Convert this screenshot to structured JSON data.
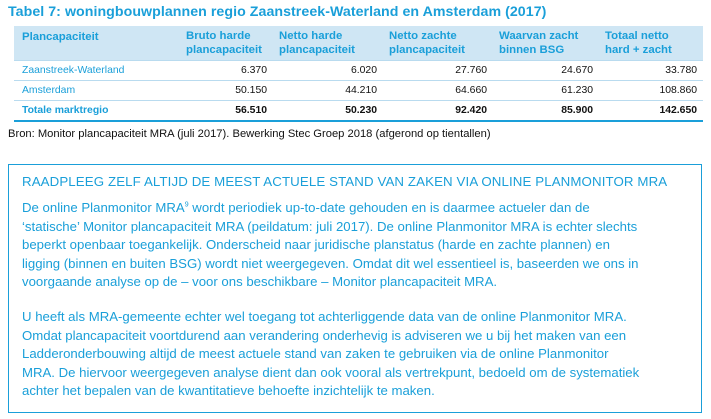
{
  "title": "Tabel 7: woningbouwplannen regio Zaanstreek-Waterland en Amsterdam (2017)",
  "table": {
    "headers": [
      [
        "Plancapaciteit",
        ""
      ],
      [
        "Bruto harde",
        "plancapaciteit"
      ],
      [
        "Netto harde",
        "plancapaciteit"
      ],
      [
        "Netto zachte",
        "plancapaciteit"
      ],
      [
        "Waarvan zacht",
        "binnen BSG"
      ],
      [
        "Totaal netto",
        "hard + zacht"
      ]
    ],
    "rows": [
      {
        "label": "Zaanstreek-Waterland",
        "values": [
          "6.370",
          "6.020",
          "27.760",
          "24.670",
          "33.780"
        ]
      },
      {
        "label": "Amsterdam",
        "values": [
          "50.150",
          "44.210",
          "64.660",
          "61.230",
          "108.860"
        ]
      }
    ],
    "total": {
      "label": "Totale marktregio",
      "values": [
        "56.510",
        "50.230",
        "92.420",
        "85.900",
        "142.650"
      ]
    }
  },
  "source": "Bron: Monitor plancapaciteit MRA (juli 2017). Bewerking Stec Groep 2018 (afgerond op tientallen)",
  "box": {
    "heading": "RAADPLEEG ZELF ALTIJD DE MEEST ACTUELE STAND VAN ZAKEN VIA ONLINE PLANMONITOR MRA",
    "p1": {
      "line1_a": "De online Planmonitor MRA",
      "footnote": "9",
      "line1_b": " wordt periodiek up-to-date gehouden en is daarmee actueler dan de",
      "line2": "‘statische’ Monitor plancapaciteit MRA (peildatum: juli 2017). De online Planmonitor MRA is echter slechts",
      "line3": "beperkt openbaar toegankelijk. Onderscheid naar juridische planstatus (harde en zachte plannen) en",
      "line4": "ligging (binnen en buiten BSG) wordt niet weergegeven. Omdat dit wel essentieel is, baseerden we ons in",
      "line5": "voorgaande analyse op de – voor ons beschikbare – Monitor plancapaciteit MRA."
    },
    "p2": {
      "line1": "U heeft als MRA-gemeente echter wel toegang tot achterliggende data van de online Planmonitor MRA.",
      "line2": "Omdat plancapaciteit voortdurend aan verandering onderhevig is adviseren we u bij het maken van een",
      "line3": "Ladderonderbouwing altijd de meest actuele stand van zaken te gebruiken via de online Planmonitor",
      "line4": "MRA. De hiervoor weergegeven analyse dient dan ook vooral als vertrekpunt, bedoeld om de systematiek",
      "line5": "achter het bepalen van de kwantitatieve behoefte inzichtelijk te maken."
    }
  },
  "colors": {
    "accent": "#1a9fd9",
    "header_bg": "#cfe6f4"
  }
}
